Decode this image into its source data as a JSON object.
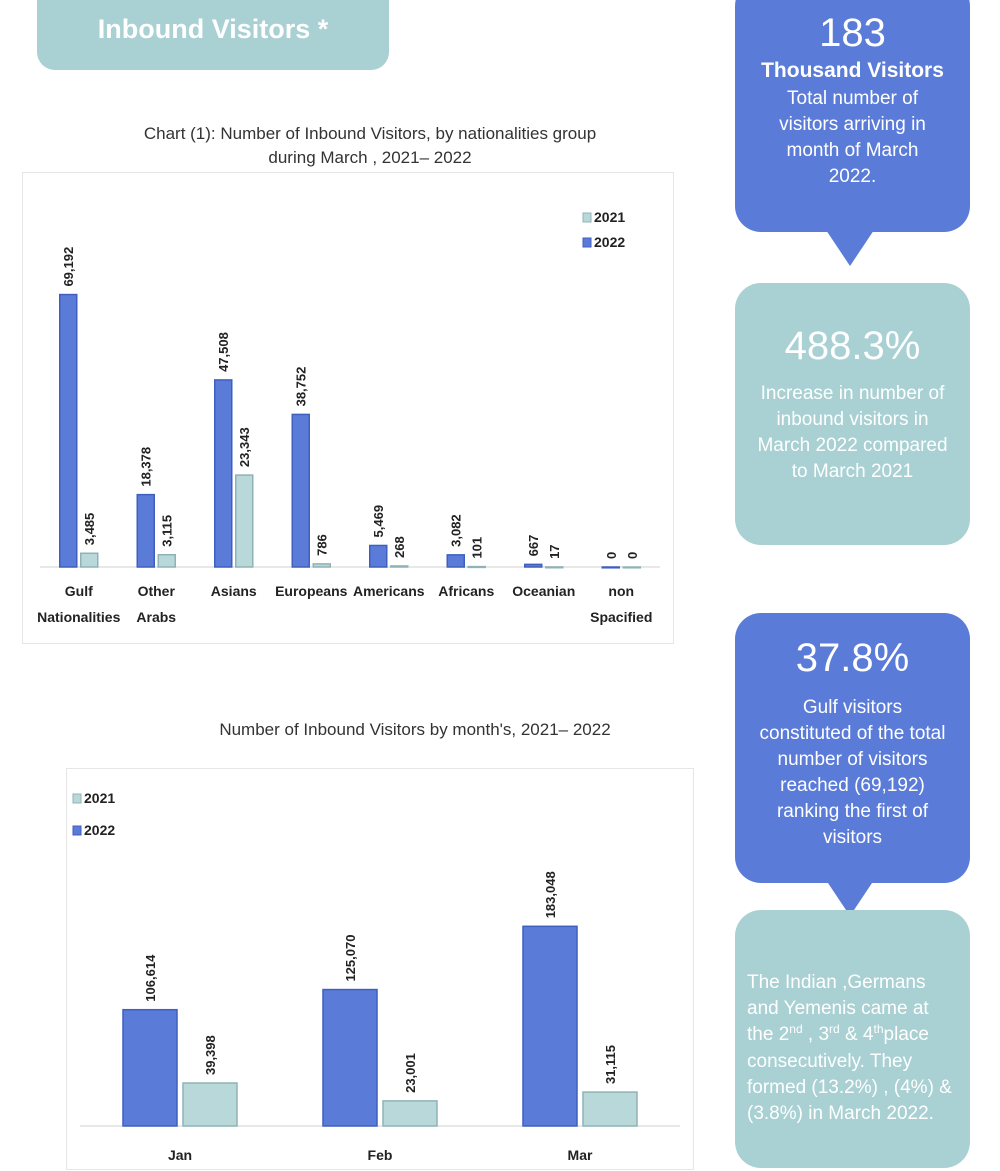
{
  "header": {
    "title": "Inbound Visitors *"
  },
  "chart1": {
    "title_line1": "Chart (1): Number of Inbound Visitors, by nationalities group",
    "title_line2": "during March , 2021– 2022"
  },
  "chart2": {
    "title": "Number of Inbound Visitors by month's, 2021– 2022"
  },
  "callouts": {
    "c1": {
      "big": "183",
      "sub": "Thousand Visitors",
      "text": [
        "Total number of",
        "visitors arriving in",
        "month of March",
        "2022."
      ]
    },
    "c2": {
      "big": "488.3%",
      "text": [
        "Increase in number of",
        "inbound visitors in",
        "March 2022 compared",
        "to March 2021"
      ]
    },
    "c3": {
      "big": "37.8%",
      "text": [
        "Gulf visitors",
        "constituted of the total",
        "number of visitors",
        "reached (69,192)",
        "ranking the first of",
        "visitors"
      ]
    },
    "c4": {
      "line1": "The Indian ,Germans",
      "line2": "and Yemenis came at",
      "line3_a": "the 2",
      "line3_sup1": "nd",
      "line3_b": " , 3",
      "line3_sup2": "rd",
      "line3_c": "  & 4",
      "line3_sup3": "th",
      "line3_d": "place",
      "line4": "consecutively. They",
      "line5": "formed (13.2%) , (4%) &",
      "line6": "(3.8%) in March 2022."
    }
  },
  "colors": {
    "series2021": "#b9d8da",
    "series2022": "#5a7bd8",
    "teal": "#a9d0d3"
  },
  "chart_data": [
    {
      "type": "bar",
      "title": "Chart (1): Number of Inbound Visitors, by nationalities group during March , 2021– 2022",
      "categories": [
        [
          "Gulf",
          "Nationalities"
        ],
        [
          "Other",
          "Arabs"
        ],
        [
          "Asians"
        ],
        [
          "Europeans"
        ],
        [
          "Americans"
        ],
        [
          "Africans"
        ],
        [
          "Oceanian"
        ],
        [
          "non",
          "Spacified"
        ]
      ],
      "series": [
        {
          "name": "2021",
          "values": [
            3485,
            3115,
            23343,
            786,
            268,
            101,
            17,
            0
          ],
          "labels": [
            "3,485",
            "3,115",
            "23,343",
            "786",
            "268",
            "101",
            "17",
            "0"
          ]
        },
        {
          "name": "2022",
          "values": [
            69192,
            18378,
            47508,
            38752,
            5469,
            3082,
            667,
            0
          ],
          "labels": [
            "69,192",
            "18,378",
            "47,508",
            "38,752",
            "5,469",
            "3,082",
            "667",
            "0"
          ]
        }
      ],
      "ylim": [
        0,
        80000
      ],
      "legend": "top-right"
    },
    {
      "type": "bar",
      "title": "Number of Inbound Visitors by month's, 2021– 2022",
      "categories": [
        [
          "Jan"
        ],
        [
          "Feb"
        ],
        [
          "Mar"
        ]
      ],
      "series": [
        {
          "name": "2021",
          "values": [
            39398,
            23001,
            31115
          ],
          "labels": [
            "39,398",
            "23,001",
            "31,115"
          ]
        },
        {
          "name": "2022",
          "values": [
            106614,
            125070,
            183048
          ],
          "labels": [
            "106,614",
            "125,070",
            "183,048"
          ]
        }
      ],
      "ylim": [
        0,
        220000
      ],
      "legend": "top-left"
    }
  ]
}
